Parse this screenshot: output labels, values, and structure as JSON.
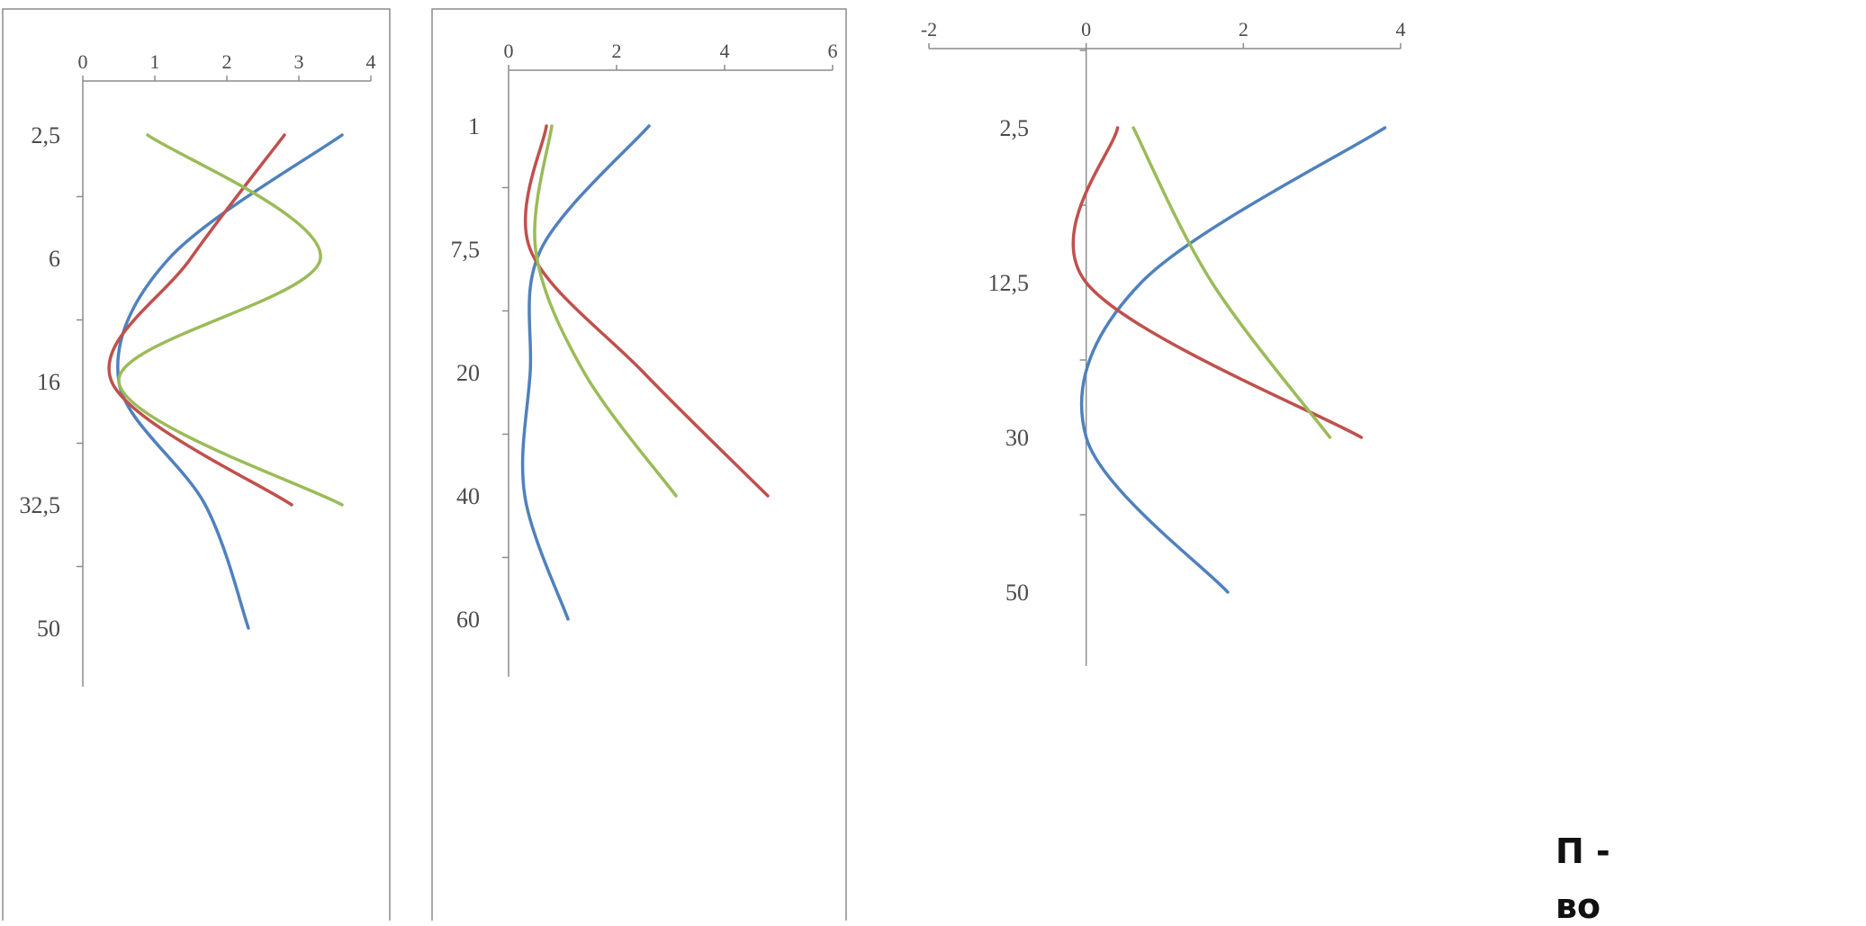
{
  "colors": {
    "blue": "#4f81bd",
    "red": "#c0504d",
    "green": "#9bbb59",
    "axis": "#8c8c8c",
    "text": "#4a4a4a"
  },
  "chart_data": [
    {
      "type": "line",
      "x_ticks": [
        "0",
        "1",
        "2",
        "3",
        "4"
      ],
      "y_ticks": [
        "2,5",
        "6",
        "16",
        "32,5",
        "50"
      ],
      "xlim": [
        0,
        4
      ],
      "y_categories": [
        "2,5",
        "6",
        "16",
        "32,5",
        "50"
      ],
      "series": [
        {
          "color": "blue",
          "points": [
            [
              3.6,
              0
            ],
            [
              1.2,
              1
            ],
            [
              0.5,
              2
            ],
            [
              1.7,
              3
            ],
            [
              2.3,
              4
            ]
          ]
        },
        {
          "color": "red",
          "points": [
            [
              2.8,
              0
            ],
            [
              1.5,
              1
            ],
            [
              0.4,
              2
            ],
            [
              2.9,
              3
            ]
          ]
        },
        {
          "color": "green",
          "points": [
            [
              0.9,
              0
            ],
            [
              3.3,
              1
            ],
            [
              0.5,
              2
            ],
            [
              3.6,
              3
            ]
          ]
        }
      ]
    },
    {
      "type": "line",
      "x_ticks": [
        "0",
        "2",
        "4",
        "6"
      ],
      "y_ticks": [
        "1",
        "7,5",
        "20",
        "40",
        "60"
      ],
      "xlim": [
        0,
        6
      ],
      "y_categories": [
        "1",
        "7,5",
        "20",
        "40",
        "60"
      ],
      "series": [
        {
          "color": "blue",
          "points": [
            [
              2.6,
              0
            ],
            [
              0.6,
              1
            ],
            [
              0.4,
              2
            ],
            [
              0.3,
              3
            ],
            [
              1.1,
              4
            ]
          ]
        },
        {
          "color": "red",
          "points": [
            [
              0.7,
              0
            ],
            [
              0.4,
              1
            ],
            [
              2.5,
              2
            ],
            [
              4.8,
              3
            ]
          ]
        },
        {
          "color": "green",
          "points": [
            [
              0.8,
              0
            ],
            [
              0.5,
              1
            ],
            [
              1.4,
              2
            ],
            [
              3.1,
              3
            ]
          ]
        }
      ]
    },
    {
      "type": "line",
      "x_ticks": [
        "-2",
        "0",
        "2",
        "4"
      ],
      "y_ticks": [
        "2,5",
        "12,5",
        "30",
        "50"
      ],
      "xlim": [
        -2,
        4
      ],
      "y_categories": [
        "2,5",
        "12,5",
        "30",
        "50"
      ],
      "series": [
        {
          "color": "blue",
          "points": [
            [
              3.8,
              0
            ],
            [
              0.7,
              1
            ],
            [
              0.0,
              2
            ],
            [
              1.8,
              3
            ]
          ]
        },
        {
          "color": "red",
          "points": [
            [
              0.4,
              0
            ],
            [
              0.0,
              1
            ],
            [
              3.5,
              2
            ]
          ]
        },
        {
          "color": "green",
          "points": [
            [
              0.6,
              0
            ],
            [
              1.6,
              1
            ],
            [
              3.1,
              2
            ]
          ]
        }
      ]
    }
  ],
  "caption": {
    "line1": "П -",
    "line2": "во"
  }
}
